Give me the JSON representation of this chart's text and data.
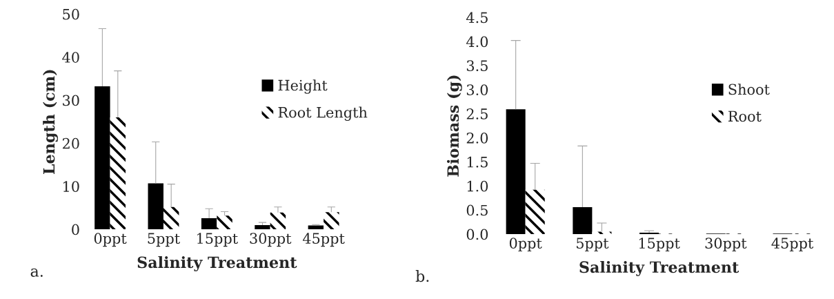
{
  "chart_data": [
    {
      "type": "bar",
      "categories": [
        "0ppt",
        "5ppt",
        "15ppt",
        "30ppt",
        "45ppt"
      ],
      "xlabel": "Salinity Treatment",
      "ylabel": "Length (cm)",
      "ylim": [
        0,
        50
      ],
      "yticks": [
        0,
        10,
        20,
        30,
        40,
        50
      ],
      "legend": "right",
      "grid": false,
      "annotations": [
        "a."
      ],
      "series": [
        {
          "name": "Height",
          "color": "#000000",
          "values": [
            33.2,
            10.7,
            2.6,
            1.0,
            0.9
          ],
          "errors": [
            [
              33.2,
              46.6
            ],
            [
              10.7,
              20.3
            ],
            [
              2.6,
              4.8
            ],
            [
              1.0,
              1.6
            ],
            [
              0.9,
              1.1
            ]
          ]
        },
        {
          "name": "Root Length",
          "color": "#000000",
          "values": [
            26.0,
            5.2,
            3.2,
            3.9,
            4.0
          ],
          "errors": [
            [
              26.0,
              36.8
            ],
            [
              5.2,
              10.5
            ],
            [
              3.2,
              4.1
            ],
            [
              3.9,
              5.2
            ],
            [
              4.0,
              5.2
            ]
          ]
        }
      ]
    },
    {
      "type": "bar",
      "categories": [
        "0ppt",
        "5ppt",
        "15ppt",
        "30ppt",
        "45ppt"
      ],
      "xlabel": "Salinity Treatment",
      "ylabel": "Biomass (g)",
      "ylim": [
        0,
        4.5
      ],
      "yticks": [
        {
          "value": 0,
          "label": "0.0"
        },
        {
          "value": 0.5,
          "label": "0.5"
        },
        {
          "value": 1,
          "label": "1.0"
        },
        {
          "value": 1.5,
          "label": "1.5"
        },
        {
          "value": 2,
          "label": "2.0"
        },
        {
          "value": 2.5,
          "label": "2.5"
        },
        {
          "value": 3,
          "label": "3.0"
        },
        {
          "value": 3.5,
          "label": "3.5"
        },
        {
          "value": 4,
          "label": "4.0"
        },
        {
          "value": 4.5,
          "label": "4.5"
        }
      ],
      "legend": "right",
      "grid": false,
      "annotations": [
        "b."
      ],
      "series": [
        {
          "name": "Shoot",
          "color": "#000000",
          "values": [
            2.59,
            0.56,
            0.03,
            0.01,
            0.01
          ],
          "errors": [
            [
              2.59,
              4.02
            ],
            [
              0.56,
              1.83
            ],
            [
              0.03,
              0.07
            ],
            null,
            null
          ]
        },
        {
          "name": "Root",
          "color": "#000000",
          "values": [
            0.92,
            0.05,
            0.01,
            0.01,
            0.01
          ],
          "errors": [
            [
              0.92,
              1.47
            ],
            [
              0.05,
              0.23
            ],
            null,
            null,
            null
          ]
        }
      ]
    }
  ]
}
